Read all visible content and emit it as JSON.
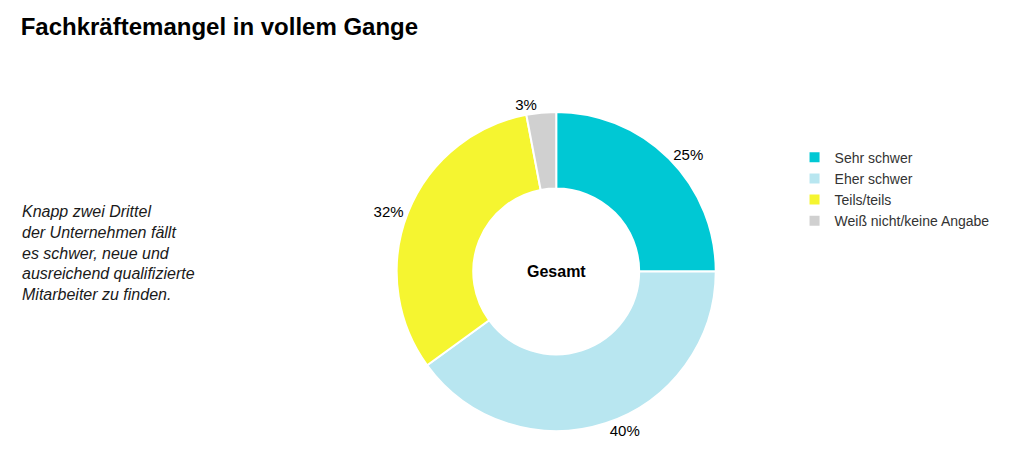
{
  "chart_data": {
    "type": "donut",
    "title": "Fachkräftemangel in vollem Gange",
    "subtitle": [
      "Knapp zwei Drittel",
      "der Unternehmen fällt",
      "es schwer, neue und",
      "ausreichend qualifizierte",
      "Mitarbeiter zu finden."
    ],
    "annotations": [
      "Gesamt"
    ],
    "categories": [
      "Sehr schwer",
      "Eher schwer",
      "Teils/teils",
      "Weiß nicht/keine Angabe"
    ],
    "values": [
      25,
      40,
      32,
      3
    ],
    "value_labels": [
      "25%",
      "40%",
      "32%",
      "3%"
    ],
    "colors": [
      "#00C8D4",
      "#B8E6F0",
      "#F5F530",
      "#D0D0D0"
    ],
    "data_labels": true,
    "legend": "right"
  }
}
